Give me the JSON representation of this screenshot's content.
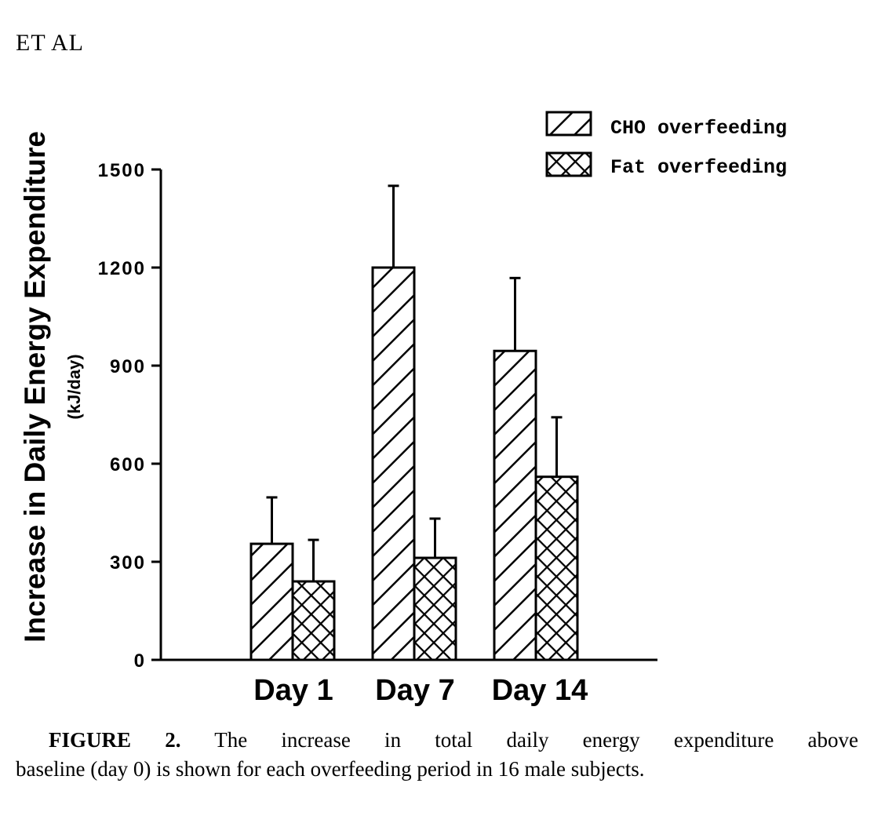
{
  "page_header": "ET AL",
  "caption": {
    "label": "FIGURE 2.",
    "line1": "The increase in total daily energy expenditure above",
    "line2": "baseline (day 0) is shown for each overfeeding period in 16 male subjects."
  },
  "chart_data": {
    "type": "bar",
    "title": "",
    "xlabel": "",
    "ylabel": "Increase in Daily Energy Expenditure",
    "ylabel_units": "(kJ/day)",
    "ylim": [
      0,
      1500
    ],
    "yticks": [
      0,
      300,
      600,
      900,
      1200,
      1500
    ],
    "grid": false,
    "legend_position": "top-right",
    "categories": [
      "Day 1",
      "Day 7",
      "Day 14"
    ],
    "series": [
      {
        "name": "CHO overfeeding",
        "pattern": "diagonal-hatch",
        "values": [
          355,
          1200,
          945
        ],
        "error_upper": [
          497,
          1450,
          1168
        ]
      },
      {
        "name": "Fat overfeeding",
        "pattern": "cross-hatch",
        "values": [
          240,
          312,
          560
        ],
        "error_upper": [
          367,
          432,
          742
        ]
      }
    ]
  }
}
